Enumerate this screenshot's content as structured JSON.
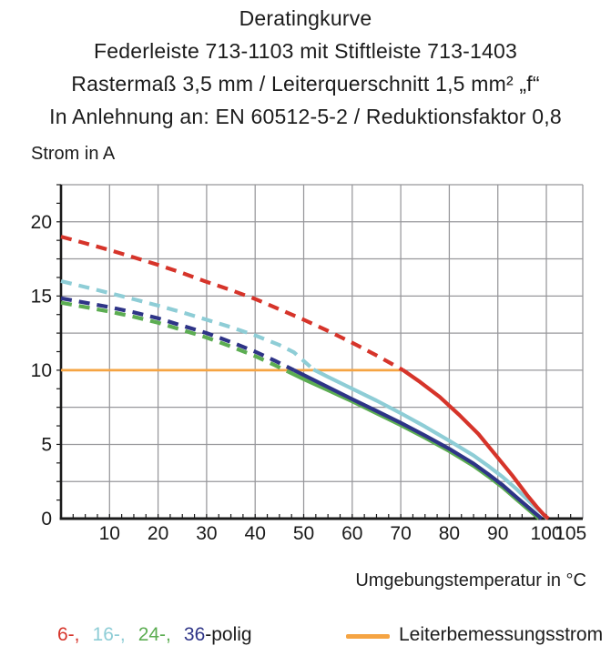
{
  "header": {
    "lines": [
      "Deratingkurve",
      "Federleiste 713-1103 mit Stiftleiste 713-1403",
      "Rastermaß 3,5 mm / Leiterquerschnitt 1,5 mm² „f“",
      "In Anlehnung an: EN 60512-5-2 / Reduktionsfaktor 0,8"
    ]
  },
  "chart_data": {
    "type": "line",
    "title": "Deratingkurve",
    "y_axis_title": "Strom in A",
    "x_axis_title": "Umgebungstemperatur in °C",
    "xlim": [
      0,
      107.5
    ],
    "ylim": [
      0,
      22.5
    ],
    "x_tick_labels": [
      10,
      20,
      30,
      40,
      50,
      60,
      70,
      80,
      90,
      100,
      105
    ],
    "y_tick_labels": [
      0,
      5,
      10,
      15,
      20
    ],
    "x_minor_step": 2.5,
    "y_minor_step": 1.25,
    "grid": {
      "x_step": 10,
      "y_step": 2.5,
      "color": "#97979b",
      "on": true
    },
    "axis_color": "#1a1a1a",
    "legend_position": "bottom",
    "note": "dashed above 10 A (Leiterbemessungsstrom), solid below",
    "series": [
      {
        "name": "Leiterbemessungsstrom",
        "color": "#f5a443",
        "width": 2.8,
        "solid": [
          [
            0,
            10
          ],
          [
            70.5,
            10
          ]
        ]
      },
      {
        "name": "24-polig",
        "color": "#5cad52",
        "width": 4.2,
        "dashed": [
          [
            0,
            14.55
          ],
          [
            5,
            14.25
          ],
          [
            10,
            13.95
          ],
          [
            15,
            13.6
          ],
          [
            20,
            13.2
          ],
          [
            25,
            12.7
          ],
          [
            30,
            12.2
          ],
          [
            35,
            11.6
          ],
          [
            40,
            10.95
          ],
          [
            44,
            10.35
          ],
          [
            46.8,
            9.9
          ]
        ],
        "solid": [
          [
            46.8,
            9.9
          ],
          [
            50,
            9.4
          ],
          [
            55,
            8.65
          ],
          [
            60,
            7.9
          ],
          [
            65,
            7.1
          ],
          [
            70,
            6.3
          ],
          [
            75,
            5.45
          ],
          [
            80,
            4.55
          ],
          [
            85,
            3.55
          ],
          [
            88,
            2.85
          ],
          [
            91,
            2.1
          ],
          [
            94,
            1.25
          ],
          [
            96.5,
            0.55
          ],
          [
            98.5,
            0
          ]
        ]
      },
      {
        "name": "36-polig",
        "color": "#2e3487",
        "width": 4.2,
        "dashed": [
          [
            0,
            14.85
          ],
          [
            5,
            14.55
          ],
          [
            10,
            14.25
          ],
          [
            15,
            13.9
          ],
          [
            20,
            13.5
          ],
          [
            25,
            13.0
          ],
          [
            30,
            12.5
          ],
          [
            35,
            11.9
          ],
          [
            40,
            11.25
          ],
          [
            44,
            10.65
          ],
          [
            48,
            10.0
          ]
        ],
        "solid": [
          [
            48,
            10.0
          ],
          [
            52,
            9.35
          ],
          [
            56,
            8.7
          ],
          [
            60,
            8.05
          ],
          [
            65,
            7.25
          ],
          [
            70,
            6.45
          ],
          [
            75,
            5.6
          ],
          [
            80,
            4.7
          ],
          [
            85,
            3.7
          ],
          [
            88,
            3.0
          ],
          [
            91,
            2.25
          ],
          [
            94,
            1.4
          ],
          [
            96.5,
            0.7
          ],
          [
            99,
            0
          ]
        ]
      },
      {
        "name": "16-polig",
        "color": "#8ecdd6",
        "width": 4.2,
        "dashed": [
          [
            0,
            16
          ],
          [
            5,
            15.6
          ],
          [
            10,
            15.2
          ],
          [
            15,
            14.78
          ],
          [
            20,
            14.35
          ],
          [
            25,
            13.9
          ],
          [
            30,
            13.4
          ],
          [
            35,
            12.9
          ],
          [
            40,
            12.35
          ],
          [
            45,
            11.7
          ],
          [
            48,
            11.2
          ],
          [
            52,
            10.05
          ]
        ],
        "solid": [
          [
            52,
            10.05
          ],
          [
            55,
            9.55
          ],
          [
            60,
            8.75
          ],
          [
            65,
            7.95
          ],
          [
            70,
            7.1
          ],
          [
            75,
            6.2
          ],
          [
            80,
            5.25
          ],
          [
            85,
            4.25
          ],
          [
            88,
            3.55
          ],
          [
            91,
            2.8
          ],
          [
            94,
            1.95
          ],
          [
            97,
            1.0
          ],
          [
            99,
            0.4
          ],
          [
            100.2,
            0
          ]
        ]
      },
      {
        "name": "6-polig",
        "color": "#d6342a",
        "width": 4.2,
        "dashed": [
          [
            0,
            19
          ],
          [
            5,
            18.55
          ],
          [
            10,
            18.1
          ],
          [
            15,
            17.6
          ],
          [
            20,
            17.1
          ],
          [
            25,
            16.55
          ],
          [
            30,
            15.95
          ],
          [
            35,
            15.4
          ],
          [
            40,
            14.8
          ],
          [
            45,
            14.1
          ],
          [
            50,
            13.4
          ],
          [
            55,
            12.65
          ],
          [
            60,
            11.85
          ],
          [
            65,
            11.0
          ],
          [
            70.5,
            10.0
          ]
        ],
        "solid": [
          [
            70.5,
            10.0
          ],
          [
            74,
            9.2
          ],
          [
            78,
            8.2
          ],
          [
            82,
            7.0
          ],
          [
            86,
            5.7
          ],
          [
            90,
            4.1
          ],
          [
            93,
            2.9
          ],
          [
            96,
            1.6
          ],
          [
            98,
            0.8
          ],
          [
            99.5,
            0.25
          ],
          [
            100.4,
            0
          ]
        ]
      }
    ]
  },
  "legend": {
    "pole_items": [
      {
        "text": "6-,",
        "color": "#d6342a"
      },
      {
        "text": "16-,",
        "color": "#8ecdd6"
      },
      {
        "text": "24-,",
        "color": "#5cad52"
      }
    ],
    "last_item": {
      "num": "36",
      "num_color": "#2e3487",
      "suffix": "-polig",
      "suffix_color": "#1c1c1c"
    },
    "current_label": "Leiterbemessungsstrom",
    "current_color": "#f5a443"
  }
}
